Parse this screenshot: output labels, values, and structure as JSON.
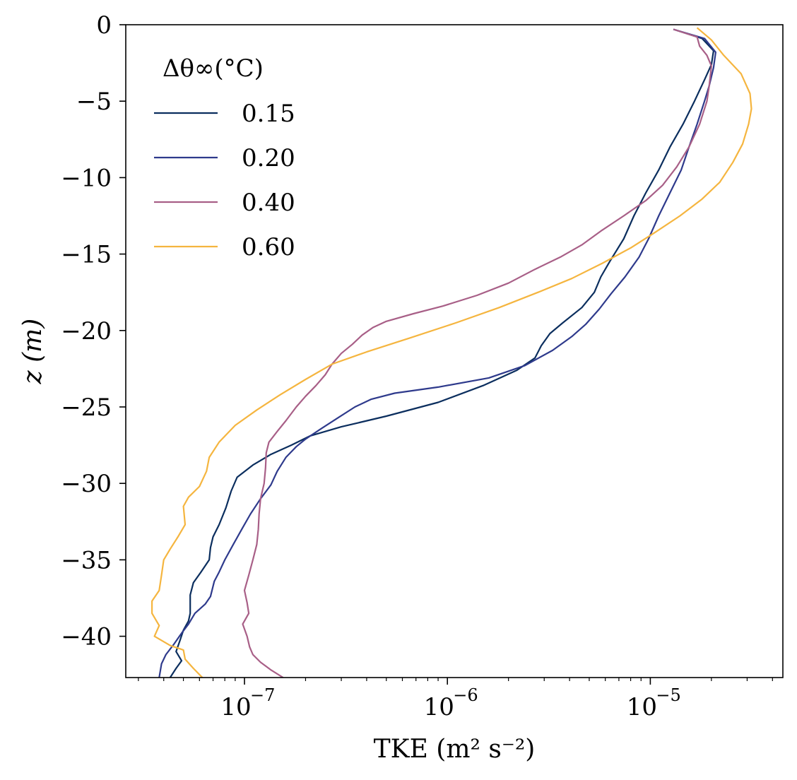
{
  "chart_data": {
    "type": "line",
    "xlabel": "TKE (m² s⁻²)",
    "ylabel": "z (m)",
    "xscale": "log",
    "xlim": [
      2.6e-08,
      4.5e-05
    ],
    "ylim": [
      -42.7,
      0
    ],
    "yticks": [
      0,
      -5,
      -10,
      -15,
      -20,
      -25,
      -30,
      -35,
      -40
    ],
    "yticklabels": [
      "0",
      "−5",
      "−10",
      "−15",
      "−20",
      "−25",
      "−30",
      "−35",
      "−40"
    ],
    "xticks": [
      1e-07,
      1e-06,
      1e-05
    ],
    "xtick_bases": [
      "10",
      "10",
      "10"
    ],
    "xtick_exps": [
      "−7",
      "−6",
      "−5"
    ],
    "grid": false,
    "legend": {
      "title": "Δθ∞(°C)",
      "placement": "top-left"
    },
    "series": [
      {
        "name": "0.15",
        "color": "#0b2e5e",
        "points": [
          [
            1.3e-05,
            -0.3
          ],
          [
            1.8e-05,
            -0.9
          ],
          [
            2.05e-05,
            -1.7
          ],
          [
            2e-05,
            -2.6
          ],
          [
            1.85e-05,
            -3.6
          ],
          [
            1.65e-05,
            -5.0
          ],
          [
            1.45e-05,
            -6.5
          ],
          [
            1.25e-05,
            -8.0
          ],
          [
            1.1e-05,
            -9.5
          ],
          [
            9.5e-06,
            -11.0
          ],
          [
            8.3e-06,
            -12.5
          ],
          [
            7.4e-06,
            -14.0
          ],
          [
            6.3e-06,
            -15.5
          ],
          [
            5.7e-06,
            -16.5
          ],
          [
            5.3e-06,
            -17.5
          ],
          [
            4.6e-06,
            -18.5
          ],
          [
            3.7e-06,
            -19.5
          ],
          [
            3.2e-06,
            -20.2
          ],
          [
            2.9e-06,
            -21.0
          ],
          [
            2.7e-06,
            -21.8
          ],
          [
            2.2e-06,
            -22.6
          ],
          [
            1.5e-06,
            -23.6
          ],
          [
            9e-07,
            -24.7
          ],
          [
            5e-07,
            -25.6
          ],
          [
            3e-07,
            -26.3
          ],
          [
            2.1e-07,
            -26.9
          ],
          [
            1.7e-07,
            -27.5
          ],
          [
            1.35e-07,
            -28.1
          ],
          [
            1.1e-07,
            -28.8
          ],
          [
            9.2e-08,
            -29.6
          ],
          [
            8.6e-08,
            -30.5
          ],
          [
            8.1e-08,
            -31.6
          ],
          [
            7.5e-08,
            -32.7
          ],
          [
            7e-08,
            -33.5
          ],
          [
            6.8e-08,
            -34.2
          ],
          [
            6.7e-08,
            -35.0
          ],
          [
            6.1e-08,
            -35.8
          ],
          [
            5.6e-08,
            -36.5
          ],
          [
            5.4e-08,
            -37.3
          ],
          [
            5.4e-08,
            -38.5
          ],
          [
            5.3e-08,
            -39.0
          ],
          [
            5e-08,
            -39.6
          ],
          [
            4.8e-08,
            -40.3
          ],
          [
            4.6e-08,
            -41.0
          ],
          [
            4.9e-08,
            -41.6
          ],
          [
            4.6e-08,
            -42.1
          ],
          [
            4.3e-08,
            -42.7
          ]
        ]
      },
      {
        "name": "0.20",
        "color": "#2e3a8c",
        "points": [
          [
            1.3e-05,
            -0.3
          ],
          [
            1.85e-05,
            -0.9
          ],
          [
            2.1e-05,
            -1.8
          ],
          [
            2.05e-05,
            -2.8
          ],
          [
            1.95e-05,
            -4.0
          ],
          [
            1.85e-05,
            -5.0
          ],
          [
            1.7e-05,
            -6.5
          ],
          [
            1.55e-05,
            -8.0
          ],
          [
            1.42e-05,
            -9.5
          ],
          [
            1.25e-05,
            -11.0
          ],
          [
            1.1e-05,
            -12.5
          ],
          [
            9.8e-06,
            -14.0
          ],
          [
            8.8e-06,
            -15.2
          ],
          [
            7.5e-06,
            -16.5
          ],
          [
            6.4e-06,
            -17.6
          ],
          [
            5.6e-06,
            -18.6
          ],
          [
            4.8e-06,
            -19.6
          ],
          [
            4.1e-06,
            -20.4
          ],
          [
            3.3e-06,
            -21.3
          ],
          [
            2.4e-06,
            -22.3
          ],
          [
            1.6e-06,
            -23.1
          ],
          [
            9e-07,
            -23.7
          ],
          [
            5.5e-07,
            -24.1
          ],
          [
            4.2e-07,
            -24.5
          ],
          [
            3.5e-07,
            -25.0
          ],
          [
            2.9e-07,
            -25.7
          ],
          [
            2.4e-07,
            -26.4
          ],
          [
            2e-07,
            -27.1
          ],
          [
            1.8e-07,
            -27.6
          ],
          [
            1.6e-07,
            -28.3
          ],
          [
            1.45e-07,
            -29.2
          ],
          [
            1.35e-07,
            -30.1
          ],
          [
            1.2e-07,
            -31.0
          ],
          [
            1.07e-07,
            -32.0
          ],
          [
            9.7e-08,
            -33.0
          ],
          [
            8.8e-08,
            -34.0
          ],
          [
            8e-08,
            -35.0
          ],
          [
            7.5e-08,
            -35.8
          ],
          [
            7.1e-08,
            -36.4
          ],
          [
            6.8e-08,
            -37.4
          ],
          [
            6.4e-08,
            -37.9
          ],
          [
            5.7e-08,
            -38.5
          ],
          [
            5.3e-08,
            -39.2
          ],
          [
            4.9e-08,
            -39.8
          ],
          [
            4.5e-08,
            -40.5
          ],
          [
            4.1e-08,
            -41.2
          ],
          [
            3.9e-08,
            -41.8
          ],
          [
            3.8e-08,
            -42.7
          ]
        ]
      },
      {
        "name": "0.40",
        "color": "#a85f87",
        "points": [
          [
            1.3e-05,
            -0.3
          ],
          [
            1.7e-05,
            -0.8
          ],
          [
            1.75e-05,
            -1.4
          ],
          [
            1.9e-05,
            -2.0
          ],
          [
            2e-05,
            -2.7
          ],
          [
            1.95e-05,
            -4.0
          ],
          [
            1.9e-05,
            -5.0
          ],
          [
            1.75e-05,
            -6.5
          ],
          [
            1.55e-05,
            -8.0
          ],
          [
            1.35e-05,
            -9.3
          ],
          [
            1.15e-05,
            -10.5
          ],
          [
            9.5e-06,
            -11.5
          ],
          [
            7.4e-06,
            -12.5
          ],
          [
            5.7e-06,
            -13.5
          ],
          [
            4.6e-06,
            -14.4
          ],
          [
            3.6e-06,
            -15.2
          ],
          [
            2.7e-06,
            -16.0
          ],
          [
            2e-06,
            -16.9
          ],
          [
            1.4e-06,
            -17.7
          ],
          [
            9.5e-07,
            -18.4
          ],
          [
            6.8e-07,
            -18.9
          ],
          [
            5e-07,
            -19.4
          ],
          [
            4.3e-07,
            -19.8
          ],
          [
            3.8e-07,
            -20.3
          ],
          [
            3.4e-07,
            -20.9
          ],
          [
            3e-07,
            -21.5
          ],
          [
            2.7e-07,
            -22.2
          ],
          [
            2.5e-07,
            -22.9
          ],
          [
            2.25e-07,
            -23.6
          ],
          [
            2e-07,
            -24.3
          ],
          [
            1.8e-07,
            -25.0
          ],
          [
            1.6e-07,
            -25.9
          ],
          [
            1.45e-07,
            -26.6
          ],
          [
            1.32e-07,
            -27.3
          ],
          [
            1.28e-07,
            -28.0
          ],
          [
            1.27e-07,
            -29.0
          ],
          [
            1.25e-07,
            -30.0
          ],
          [
            1.2e-07,
            -31.0
          ],
          [
            1.18e-07,
            -32.0
          ],
          [
            1.17e-07,
            -33.0
          ],
          [
            1.15e-07,
            -34.0
          ],
          [
            1.1e-07,
            -35.0
          ],
          [
            1.05e-07,
            -36.0
          ],
          [
            1e-07,
            -37.0
          ],
          [
            1.03e-07,
            -37.8
          ],
          [
            1.05e-07,
            -38.5
          ],
          [
            9.8e-08,
            -39.2
          ],
          [
            1.03e-07,
            -40.0
          ],
          [
            1.06e-07,
            -40.7
          ],
          [
            1.1e-07,
            -41.2
          ],
          [
            1.2e-07,
            -41.7
          ],
          [
            1.35e-07,
            -42.2
          ],
          [
            1.55e-07,
            -42.7
          ]
        ]
      },
      {
        "name": "0.60",
        "color": "#f5b53f",
        "points": [
          [
            1.7e-05,
            -0.2
          ],
          [
            2e-05,
            -1.0
          ],
          [
            2.3e-05,
            -2.0
          ],
          [
            2.8e-05,
            -3.2
          ],
          [
            3.1e-05,
            -4.5
          ],
          [
            3.15e-05,
            -5.5
          ],
          [
            3.05e-05,
            -6.5
          ],
          [
            2.85e-05,
            -7.8
          ],
          [
            2.55e-05,
            -9.0
          ],
          [
            2.2e-05,
            -10.3
          ],
          [
            1.8e-05,
            -11.4
          ],
          [
            1.4e-05,
            -12.5
          ],
          [
            1.05e-05,
            -13.6
          ],
          [
            8e-06,
            -14.6
          ],
          [
            5.8e-06,
            -15.6
          ],
          [
            4.1e-06,
            -16.6
          ],
          [
            2.8e-06,
            -17.5
          ],
          [
            1.8e-06,
            -18.5
          ],
          [
            1.1e-06,
            -19.5
          ],
          [
            6.5e-07,
            -20.5
          ],
          [
            4e-07,
            -21.4
          ],
          [
            2.7e-07,
            -22.2
          ],
          [
            2e-07,
            -23.2
          ],
          [
            1.5e-07,
            -24.2
          ],
          [
            1.15e-07,
            -25.2
          ],
          [
            9e-08,
            -26.2
          ],
          [
            7.5e-08,
            -27.3
          ],
          [
            6.7e-08,
            -28.3
          ],
          [
            6.5e-08,
            -29.2
          ],
          [
            6e-08,
            -30.2
          ],
          [
            5.3e-08,
            -30.9
          ],
          [
            5e-08,
            -31.5
          ],
          [
            5.1e-08,
            -32.7
          ],
          [
            4.7e-08,
            -33.5
          ],
          [
            4.3e-08,
            -34.3
          ],
          [
            4e-08,
            -35.0
          ],
          [
            3.9e-08,
            -36.0
          ],
          [
            3.8e-08,
            -37.0
          ],
          [
            3.5e-08,
            -37.7
          ],
          [
            3.5e-08,
            -38.5
          ],
          [
            3.8e-08,
            -39.3
          ],
          [
            3.6e-08,
            -40.0
          ],
          [
            4.3e-08,
            -40.6
          ],
          [
            5e-08,
            -40.9
          ],
          [
            5.1e-08,
            -41.5
          ],
          [
            5.6e-08,
            -42.1
          ],
          [
            6.2e-08,
            -42.7
          ]
        ]
      }
    ]
  }
}
